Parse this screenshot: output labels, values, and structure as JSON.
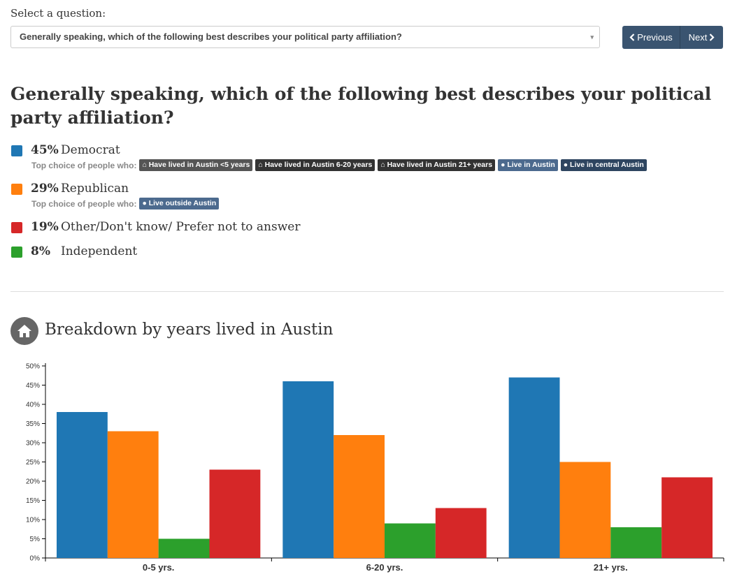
{
  "select": {
    "label": "Select a question:",
    "value": "Generally speaking, which of the following best describes your political party affiliation?",
    "caret": "▾"
  },
  "nav": {
    "previous": "Previous",
    "next": "Next"
  },
  "question": "Generally speaking, which of the following best describes your political party affiliation?",
  "answers": [
    {
      "pct": "45%",
      "label": "Democrat",
      "color": "#1f77b4",
      "top_choice_label": "Top choice of people who:",
      "tags": [
        "Have lived in Austin <5 years",
        "Have lived in Austin 6-20 years",
        "Have lived in Austin 21+ years",
        "Live in Austin",
        "Live in central Austin"
      ]
    },
    {
      "pct": "29%",
      "label": "Republican",
      "color": "#ff7f0e",
      "top_choice_label": "Top choice of people who:",
      "tags": [
        "Live outside Austin"
      ]
    },
    {
      "pct": "19%",
      "label": "Other/Don't know/ Prefer not to answer",
      "color": "#d62728"
    },
    {
      "pct": "8%",
      "label": "Independent",
      "color": "#2ca02c"
    }
  ],
  "breakdown": {
    "title": "Breakdown by years lived in Austin",
    "icon": "home-icon"
  },
  "chart_data": {
    "type": "bar",
    "categories": [
      "0-5 yrs.",
      "6-20 yrs.",
      "21+ yrs."
    ],
    "series": [
      {
        "color": "#1f77b4",
        "values": [
          38,
          46,
          47
        ]
      },
      {
        "color": "#ff7f0e",
        "values": [
          33,
          32,
          25
        ]
      },
      {
        "color": "#2ca02c",
        "values": [
          5,
          9,
          8
        ]
      },
      {
        "color": "#d62728",
        "values": [
          23,
          13,
          21
        ]
      }
    ],
    "ylim": [
      0,
      50
    ],
    "yticks": [
      "0%",
      "5%",
      "10%",
      "15%",
      "20%",
      "25%",
      "30%",
      "35%",
      "40%",
      "45%",
      "50%"
    ],
    "grid": false
  }
}
